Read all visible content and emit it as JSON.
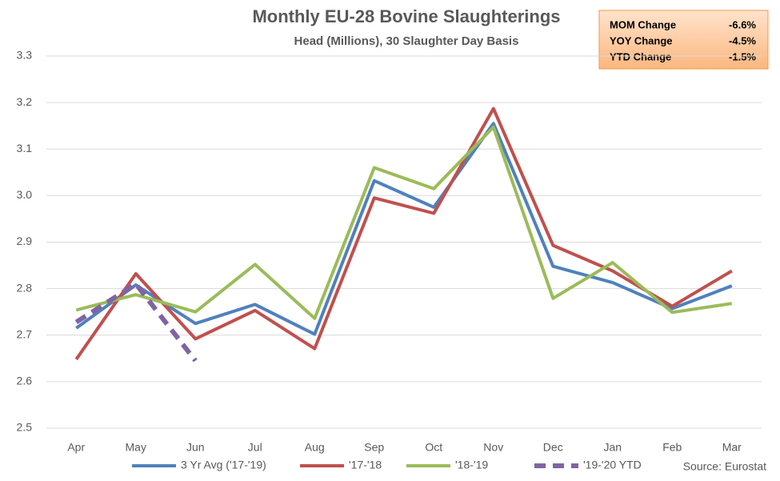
{
  "chart_data": {
    "type": "line",
    "title": "Monthly EU-28 Bovine Slaughterings",
    "subtitle": "Head (Millions), 30 Slaughter Day Basis",
    "source": "Source: Eurostat",
    "info_box": [
      [
        "MOM Change",
        "-6.6%"
      ],
      [
        "YOY Change",
        "-4.5%"
      ],
      [
        "YTD Change",
        "-1.5%"
      ]
    ],
    "categories": [
      "Apr",
      "May",
      "Jun",
      "Jul",
      "Aug",
      "Sep",
      "Oct",
      "Nov",
      "Dec",
      "Jan",
      "Feb",
      "Mar"
    ],
    "ylim": [
      2.5,
      3.3
    ],
    "yticks": [
      2.5,
      2.6,
      2.7,
      2.8,
      2.9,
      {
        "value": 3,
        "label": "3.0"
      },
      3.1,
      3.2,
      3.3
    ],
    "grid": true,
    "series": [
      {
        "name": "3 Yr Avg ('17-'19)",
        "color": "#4f81bd",
        "dashed": false,
        "values": [
          2.715,
          2.808,
          2.725,
          2.766,
          2.702,
          3.032,
          2.975,
          3.155,
          2.848,
          2.813,
          2.757,
          2.806
        ]
      },
      {
        "name": "'17-'18",
        "color": "#c0504d",
        "dashed": false,
        "values": [
          2.648,
          2.832,
          2.692,
          2.753,
          2.671,
          2.995,
          2.962,
          3.187,
          2.893,
          2.838,
          2.762,
          2.838
        ]
      },
      {
        "name": "'18-'19",
        "color": "#9bbb59",
        "dashed": false,
        "values": [
          2.754,
          2.787,
          2.75,
          2.852,
          2.736,
          3.06,
          3.015,
          3.147,
          2.779,
          2.856,
          2.749,
          2.768
        ]
      },
      {
        "name": "'19-'20 YTD",
        "color": "#8064a2",
        "dashed": true,
        "values": [
          2.728,
          2.81,
          2.645,
          null,
          null,
          null,
          null,
          null,
          null,
          null,
          null,
          null
        ]
      }
    ]
  }
}
